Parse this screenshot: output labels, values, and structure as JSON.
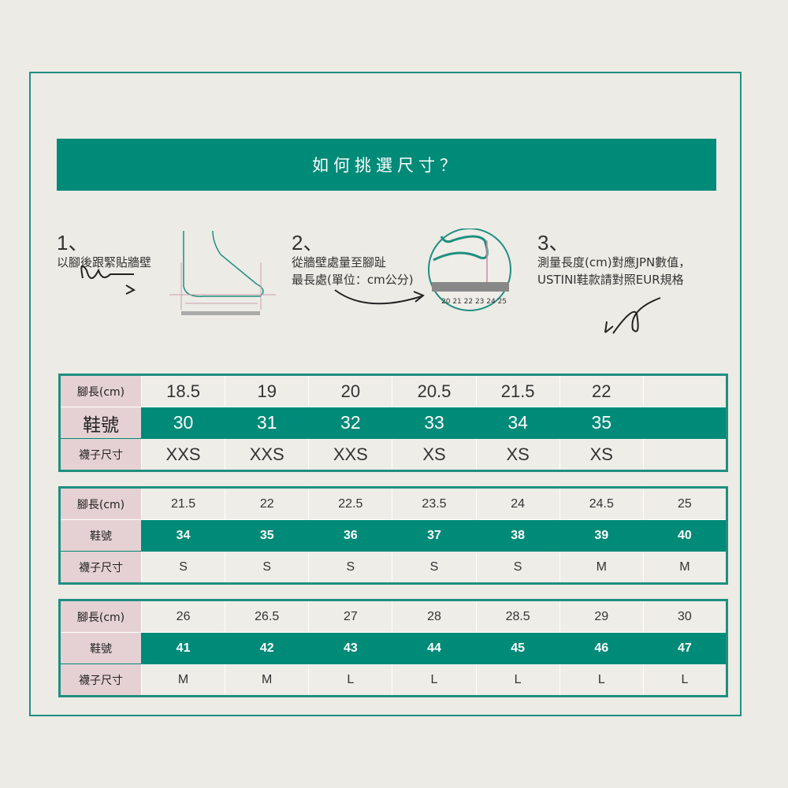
{
  "title": "如何挑選尺寸？",
  "steps": [
    {
      "num": "1、",
      "text": [
        "以腳後跟緊貼牆壁"
      ]
    },
    {
      "num": "2、",
      "text": [
        "從牆壁處量至腳趾",
        "最長處(單位：cm公分)"
      ]
    },
    {
      "num": "3、",
      "text": [
        "測量長度(cm)對應JPN數值，",
        "USTINI鞋款請對照EUR規格"
      ]
    }
  ],
  "ruler_labels": "20 21 22 23 24 25",
  "row_labels": {
    "foot": "腳長(cm)",
    "shoe": "鞋號",
    "sock": "襪子尺寸"
  },
  "tables": [
    {
      "foot": [
        "18.5",
        "19",
        "20",
        "20.5",
        "21.5",
        "22",
        ""
      ],
      "shoe": [
        "30",
        "31",
        "32",
        "33",
        "34",
        "35",
        ""
      ],
      "sock": [
        "XXS",
        "XXS",
        "XXS",
        "XS",
        "XS",
        "XS",
        ""
      ]
    },
    {
      "foot": [
        "21.5",
        "22",
        "22.5",
        "23.5",
        "24",
        "24.5",
        "25"
      ],
      "shoe": [
        "34",
        "35",
        "36",
        "37",
        "38",
        "39",
        "40"
      ],
      "sock": [
        "S",
        "S",
        "S",
        "S",
        "S",
        "M",
        "M"
      ]
    },
    {
      "foot": [
        "26",
        "26.5",
        "27",
        "28",
        "28.5",
        "29",
        "30"
      ],
      "shoe": [
        "41",
        "42",
        "43",
        "44",
        "45",
        "46",
        "47"
      ],
      "sock": [
        "M",
        "M",
        "L",
        "L",
        "L",
        "L",
        "L"
      ]
    }
  ],
  "colors": {
    "accent": "#008a78",
    "label_bg": "#e5d1d3",
    "background": "#ecebe5"
  }
}
